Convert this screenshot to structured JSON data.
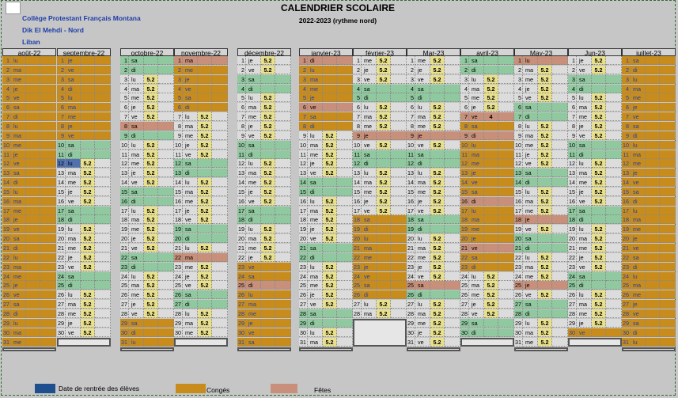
{
  "school": {
    "line1": "Collège Protestant Français Montana",
    "line2": "Dik El Mehdi - Nord",
    "line3": "Liban"
  },
  "title": "CALENDRIER SCOLAIRE",
  "subtitle": "2022-2023 (rythme nord)",
  "hours_value": "5.2",
  "colors": {
    "work": "#dcdcdc",
    "conges": "#c88c1c",
    "weekend": "#90c8a0",
    "fetes": "#c8907a",
    "rentree": "#5070b0",
    "hours": "#e8e08c"
  },
  "legend": [
    {
      "label": "Date de rentrée des élèves",
      "color": "#1f4f8f"
    },
    {
      "label": "Congés",
      "color": "#c88c1c"
    },
    {
      "label": "Fêtes",
      "color": "#c8907a"
    }
  ],
  "months": [
    {
      "label": "août-22",
      "days": 31,
      "first_dow": 1,
      "conges": "1-31",
      "feries": "",
      "rentree": 0,
      "special": {}
    },
    {
      "label": "septembre-22",
      "days": 30,
      "first_dow": 4,
      "conges": "1-9",
      "feries": "",
      "rentree": 12,
      "special": {}
    },
    {
      "label": "octobre-22",
      "days": 31,
      "first_dow": 6,
      "conges": "29-31",
      "feries": "8",
      "rentree": 0,
      "special": {}
    },
    {
      "label": "novembre-22",
      "days": 30,
      "first_dow": 2,
      "conges": "1-6",
      "feries": "1,22",
      "rentree": 0,
      "special": {}
    },
    {
      "label": "décembre-22",
      "days": 31,
      "first_dow": 4,
      "conges": "23-31",
      "feries": "25",
      "rentree": 0,
      "special": {}
    },
    {
      "label": "janvier-23",
      "days": 31,
      "first_dow": 0,
      "conges": "1-8",
      "feries": "1,6",
      "rentree": 0,
      "special": {}
    },
    {
      "label": "février-23",
      "days": 28,
      "first_dow": 3,
      "conges": "18-26",
      "feries": "9",
      "rentree": 0,
      "special": {}
    },
    {
      "label": "Mar-23",
      "days": 31,
      "first_dow": 3,
      "conges": "",
      "feries": "9,25",
      "rentree": 0,
      "special": {}
    },
    {
      "label": "avril-23",
      "days": 30,
      "first_dow": 6,
      "conges": "8-23",
      "feries": "7,9,16,21",
      "rentree": 0,
      "special": {
        "7": "4"
      }
    },
    {
      "label": "May-23",
      "days": 31,
      "first_dow": 1,
      "conges": "",
      "feries": "1,18,25",
      "rentree": 0,
      "special": {}
    },
    {
      "label": "Jun-23",
      "days": 30,
      "first_dow": 4,
      "conges": "30",
      "feries": "",
      "rentree": 0,
      "special": {}
    },
    {
      "label": "juillet-23",
      "days": 31,
      "first_dow": 6,
      "conges": "1-31",
      "feries": "",
      "rentree": 0,
      "special": {}
    }
  ],
  "weekdays": [
    "di",
    "lu",
    "ma",
    "me",
    "je",
    "ve",
    "sa"
  ]
}
